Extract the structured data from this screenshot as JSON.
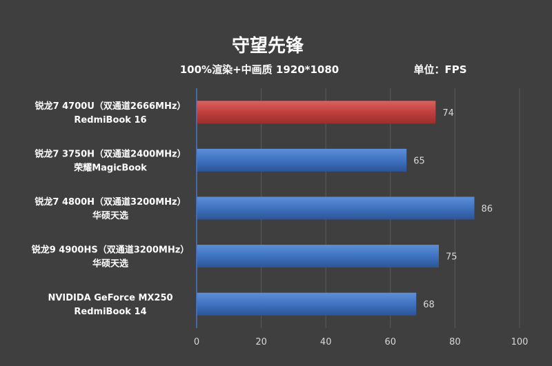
{
  "chart_data": {
    "type": "bar",
    "orientation": "horizontal",
    "title": "守望先锋",
    "subtitle": "100%渲染+中画质 1920*1080",
    "unit_label": "单位：FPS",
    "categories": [
      [
        "锐龙7 4700U（双通道2666MHz）",
        "RedmiBook 16"
      ],
      [
        "锐龙7 3750H（双通道2400MHz）",
        "荣耀MagicBook"
      ],
      [
        "锐龙7 4800H（双通道3200MHz）",
        "华硕天选"
      ],
      [
        "锐龙9 4900HS（双通道3200MHz）",
        "华硕天选"
      ],
      [
        "NVIDIDA GeForce MX250",
        "RedmiBook 14"
      ]
    ],
    "values": [
      74,
      65,
      86,
      75,
      68
    ],
    "bar_colors": [
      "#c0403e",
      "#3f72c0",
      "#3f72c0",
      "#3f72c0",
      "#3f72c0"
    ],
    "xlim": [
      0,
      100
    ],
    "xticks": [
      "0",
      "20",
      "40",
      "60",
      "80",
      "100"
    ],
    "grid": true,
    "legend": "none"
  }
}
